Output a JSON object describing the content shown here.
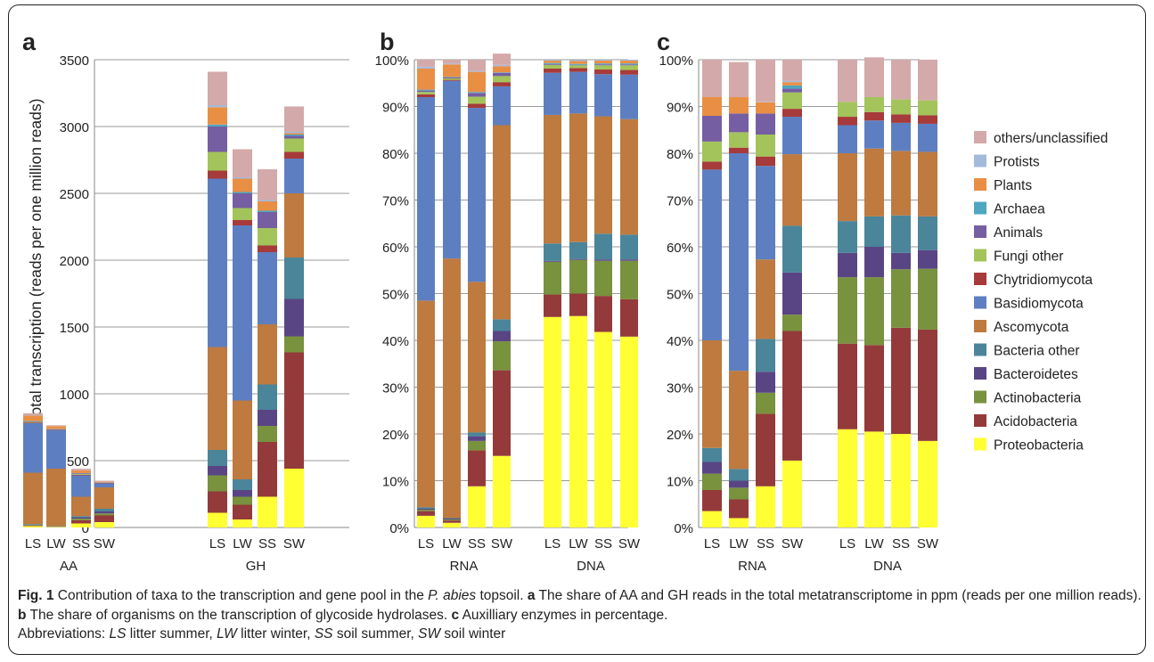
{
  "colors": {
    "Proteobacteria": "#ffff33",
    "Acidobacteria": "#943a3a",
    "Actinobacteria": "#78923e",
    "Bacteroidetes": "#5a4584",
    "Bacteria other": "#4a859a",
    "Ascomycota": "#be7a3f",
    "Basidiomycota": "#5d7fc2",
    "Chytridiomycota": "#a73a3a",
    "Fungi other": "#a3c45a",
    "Animals": "#765ea2",
    "Archaea": "#4fa6bf",
    "Plants": "#e98f44",
    "Protists": "#a4badc",
    "others/unclassified": "#d4a9a9"
  },
  "legend": [
    "others/unclassified",
    "Protists",
    "Plants",
    "Archaea",
    "Animals",
    "Fungi other",
    "Chytridiomycota",
    "Basidiomycota",
    "Ascomycota",
    "Bacteria other",
    "Bacteroidetes",
    "Actinobacteria",
    "Acidobacteria",
    "Proteobacteria"
  ],
  "chart_data": [
    {
      "panel": "a",
      "type": "bar",
      "stacked": true,
      "ylabel": "Share of total transcription (reads per one million reads)",
      "ylim": [
        0,
        3500
      ],
      "yticks": [
        "0",
        "500",
        "1000",
        "1500",
        "2000",
        "2500",
        "3000",
        "3500"
      ],
      "groups": [
        {
          "label": "AA",
          "categories": [
            "LS",
            "LW",
            "SS",
            "SW"
          ]
        },
        {
          "label": "GH",
          "categories": [
            "LS",
            "LW",
            "SS",
            "SW"
          ]
        }
      ],
      "series": [
        {
          "name": "Proteobacteria",
          "values": [
            10,
            3,
            30,
            40,
            110,
            60,
            230,
            440
          ]
        },
        {
          "name": "Acidobacteria",
          "values": [
            3,
            2,
            25,
            50,
            160,
            110,
            410,
            870
          ]
        },
        {
          "name": "Actinobacteria",
          "values": [
            5,
            2,
            12,
            15,
            120,
            60,
            120,
            120
          ]
        },
        {
          "name": "Bacteroidetes",
          "values": [
            2,
            1,
            10,
            15,
            70,
            50,
            120,
            280
          ]
        },
        {
          "name": "Bacteria other",
          "values": [
            5,
            2,
            8,
            20,
            120,
            80,
            190,
            310
          ]
        },
        {
          "name": "Ascomycota",
          "values": [
            385,
            430,
            145,
            160,
            770,
            590,
            450,
            480
          ]
        },
        {
          "name": "Basidiomycota",
          "values": [
            370,
            290,
            160,
            30,
            1260,
            1310,
            540,
            260
          ]
        },
        {
          "name": "Chytridiomycota",
          "values": [
            5,
            3,
            5,
            3,
            60,
            40,
            50,
            50
          ]
        },
        {
          "name": "Fungi other",
          "values": [
            5,
            2,
            5,
            2,
            140,
            90,
            130,
            100
          ]
        },
        {
          "name": "Animals",
          "values": [
            5,
            2,
            5,
            2,
            190,
            110,
            120,
            20
          ]
        },
        {
          "name": "Archaea",
          "values": [
            2,
            1,
            2,
            1,
            15,
            10,
            10,
            10
          ]
        },
        {
          "name": "Plants",
          "values": [
            40,
            20,
            20,
            5,
            130,
            100,
            70,
            10
          ]
        },
        {
          "name": "Protists",
          "values": [
            3,
            1,
            2,
            1,
            15,
            10,
            10,
            10
          ]
        },
        {
          "name": "others/unclassified",
          "values": [
            15,
            6,
            11,
            6,
            250,
            210,
            230,
            190
          ]
        }
      ]
    },
    {
      "panel": "b",
      "type": "bar",
      "stacked": true,
      "ylim": [
        0,
        100
      ],
      "yticks": [
        "0%",
        "10%",
        "20%",
        "30%",
        "40%",
        "50%",
        "60%",
        "70%",
        "80%",
        "90%",
        "100%"
      ],
      "groups": [
        {
          "label": "RNA",
          "categories": [
            "LS",
            "LW",
            "SS",
            "SW"
          ]
        },
        {
          "label": "DNA",
          "categories": [
            "LS",
            "LW",
            "SS",
            "SW"
          ]
        }
      ],
      "series": [
        {
          "name": "Proteobacteria",
          "values": [
            2.5,
            1.0,
            8.8,
            15.3,
            45.0,
            45.2,
            41.8,
            40.8
          ]
        },
        {
          "name": "Acidobacteria",
          "values": [
            1.0,
            0.5,
            7.7,
            18.3,
            4.8,
            4.8,
            7.7,
            8.0
          ]
        },
        {
          "name": "Actinobacteria",
          "values": [
            0.3,
            0.2,
            2.0,
            6.2,
            7.0,
            7.2,
            7.5,
            8.2
          ]
        },
        {
          "name": "Bacteroidetes",
          "values": [
            0.2,
            0.2,
            1.0,
            2.2,
            0.2,
            0.2,
            0.3,
            0.3
          ]
        },
        {
          "name": "Bacteria other",
          "values": [
            0.3,
            0.1,
            0.8,
            2.5,
            3.7,
            3.6,
            5.5,
            5.3
          ]
        },
        {
          "name": "Ascomycota",
          "values": [
            44.2,
            55.5,
            32.2,
            41.5,
            27.5,
            27.5,
            25.1,
            24.7
          ]
        },
        {
          "name": "Basidiomycota",
          "values": [
            43.5,
            38.0,
            37.2,
            8.3,
            9.0,
            8.9,
            9.0,
            9.5
          ]
        },
        {
          "name": "Chytridiomycota",
          "values": [
            0.6,
            0.2,
            0.9,
            0.9,
            0.9,
            0.8,
            1.0,
            1.0
          ]
        },
        {
          "name": "Fungi other",
          "values": [
            0.5,
            0.3,
            1.5,
            1.3,
            0.8,
            0.6,
            0.9,
            1.0
          ]
        },
        {
          "name": "Animals",
          "values": [
            0.3,
            0.2,
            0.8,
            0.7,
            0.2,
            0.1,
            0.2,
            0.2
          ]
        },
        {
          "name": "Archaea",
          "values": [
            0.2,
            0.1,
            0.2,
            0.1,
            0.2,
            0.2,
            0.2,
            0.2
          ]
        },
        {
          "name": "Plants",
          "values": [
            4.5,
            2.7,
            4.3,
            1.3,
            0.5,
            0.6,
            0.6,
            0.6
          ]
        },
        {
          "name": "Protists",
          "values": [
            0.4,
            0.2,
            0.2,
            0.3,
            0.2,
            0.2,
            0.2,
            0.2
          ]
        },
        {
          "name": "others/unclassified",
          "values": [
            1.5,
            0.8,
            2.4,
            2.4,
            0.0,
            0.0,
            0.0,
            0.0
          ]
        }
      ]
    },
    {
      "panel": "c",
      "type": "bar",
      "stacked": true,
      "ylim": [
        0,
        100
      ],
      "yticks": [
        "0%",
        "10%",
        "20%",
        "30%",
        "40%",
        "50%",
        "60%",
        "70%",
        "80%",
        "90%",
        "100%"
      ],
      "groups": [
        {
          "label": "RNA",
          "categories": [
            "LS",
            "LW",
            "SS",
            "SW"
          ]
        },
        {
          "label": "DNA",
          "categories": [
            "LS",
            "LW",
            "SS",
            "SW"
          ]
        }
      ],
      "series": [
        {
          "name": "Proteobacteria",
          "values": [
            3.5,
            2.0,
            8.8,
            14.3,
            21.0,
            20.5,
            20.0,
            18.5
          ]
        },
        {
          "name": "Acidobacteria",
          "values": [
            4.5,
            4.0,
            15.5,
            27.7,
            18.3,
            18.5,
            22.7,
            23.8
          ]
        },
        {
          "name": "Actinobacteria",
          "values": [
            3.5,
            2.5,
            4.5,
            3.5,
            14.2,
            14.5,
            12.5,
            13.0
          ]
        },
        {
          "name": "Bacteroidetes",
          "values": [
            2.5,
            1.5,
            4.5,
            9.0,
            5.2,
            6.5,
            3.5,
            4.0
          ]
        },
        {
          "name": "Bacteria other",
          "values": [
            3.0,
            2.5,
            7.0,
            10.0,
            6.8,
            6.5,
            8.0,
            7.2
          ]
        },
        {
          "name": "Ascomycota",
          "values": [
            23.0,
            21.0,
            17.0,
            15.3,
            14.5,
            14.5,
            13.8,
            13.8
          ]
        },
        {
          "name": "Basidiomycota",
          "values": [
            36.5,
            46.5,
            20.0,
            8.0,
            6.0,
            6.0,
            6.0,
            6.0
          ]
        },
        {
          "name": "Chytridiomycota",
          "values": [
            1.7,
            1.2,
            2.0,
            1.7,
            1.8,
            1.8,
            1.8,
            1.8
          ]
        },
        {
          "name": "Fungi other",
          "values": [
            4.3,
            3.3,
            4.7,
            3.5,
            3.2,
            3.2,
            3.2,
            3.2
          ]
        },
        {
          "name": "Animals",
          "values": [
            5.5,
            4.0,
            4.5,
            0.8,
            0.0,
            0.0,
            0.0,
            0.0
          ]
        },
        {
          "name": "Archaea",
          "values": [
            0.0,
            0.0,
            0.0,
            0.7,
            0.0,
            0.0,
            0.0,
            0.0
          ]
        },
        {
          "name": "Plants",
          "values": [
            4.0,
            3.5,
            2.4,
            0.7,
            0.0,
            0.0,
            0.0,
            0.0
          ]
        },
        {
          "name": "Protists",
          "values": [
            0.0,
            0.0,
            0.1,
            0.3,
            0.0,
            0.0,
            0.0,
            0.0
          ]
        },
        {
          "name": "others/unclassified",
          "values": [
            8.0,
            7.5,
            9.0,
            4.5,
            9.0,
            8.5,
            8.5,
            8.7
          ]
        }
      ]
    }
  ],
  "caption": {
    "fig_label": "Fig. 1",
    "intro": " Contribution of taxa to the transcription and gene pool in the ",
    "species": "P. abies",
    "intro_end": " topsoil. ",
    "a_label": "a",
    "a_text": " The share of AA and GH reads in the total metatranscriptome in ppm (reads per one million reads). ",
    "b_label": "b",
    "b_text": " The share of organisms on the transcription of glycoside hydrolases. ",
    "c_label": "c",
    "c_text": " Auxilliary enzymes in percentage.",
    "abbr_lead": "Abbreviations: ",
    "abbr_ls": "LS",
    "abbr_ls_text": " litter summer, ",
    "abbr_lw": "LW",
    "abbr_lw_text": " litter winter, ",
    "abbr_ss": "SS",
    "abbr_ss_text": " soil summer, ",
    "abbr_sw": "SW",
    "abbr_sw_text": " soil winter"
  }
}
